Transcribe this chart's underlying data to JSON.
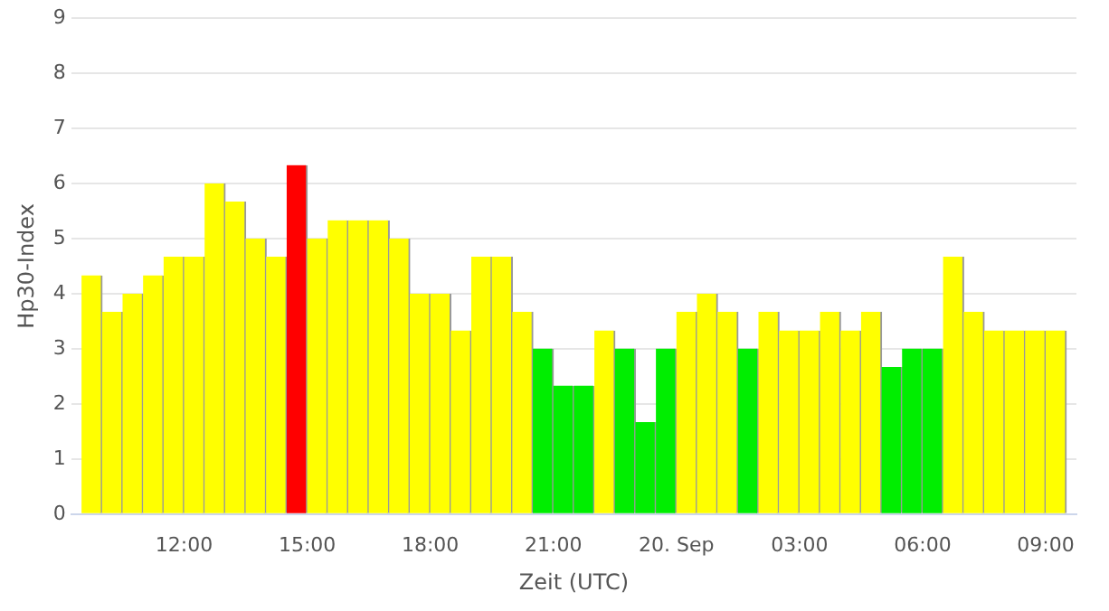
{
  "chart_data": {
    "type": "bar",
    "xlabel": "Zeit (UTC)",
    "ylabel": "Hp30-Index",
    "x": [
      "--09-19T09:45",
      "--09-19T10:15",
      "--09-19T10:45",
      "--09-19T11:15",
      "--09-19T11:45",
      "--09-19T12:15",
      "--09-19T12:45",
      "--09-19T13:15",
      "--09-19T13:45",
      "--09-19T14:15",
      "--09-19T14:45",
      "--09-19T15:15",
      "--09-19T15:45",
      "--09-19T16:15",
      "--09-19T16:45",
      "--09-19T17:15",
      "--09-19T17:45",
      "--09-19T18:15",
      "--09-19T18:45",
      "--09-19T19:15",
      "--09-19T19:45",
      "--09-19T20:15",
      "--09-19T20:45",
      "--09-19T21:15",
      "--09-19T21:45",
      "--09-19T22:15",
      "--09-19T22:45",
      "--09-19T23:15",
      "--09-19T23:45",
      "--09-20T00:15",
      "--09-20T00:45",
      "--09-20T01:15",
      "--09-20T01:45",
      "--09-20T02:15",
      "--09-20T02:45",
      "--09-20T03:15",
      "--09-20T03:45",
      "--09-20T04:15",
      "--09-20T04:45",
      "--09-20T05:15",
      "--09-20T05:45",
      "--09-20T06:15",
      "--09-20T06:45",
      "--09-20T07:15",
      "--09-20T07:45",
      "--09-20T08:15",
      "--09-20T08:45",
      "--09-20T09:15"
    ],
    "values": [
      4.33,
      3.67,
      4,
      4.33,
      4.67,
      4.67,
      6,
      5.67,
      5,
      4.67,
      6.33,
      5,
      5.33,
      5.33,
      5.33,
      5,
      4,
      4,
      3.33,
      4.67,
      4.67,
      3.67,
      3,
      2.33,
      2.33,
      3.33,
      3,
      1.67,
      3,
      3.67,
      4,
      3.67,
      3,
      3.67,
      3.33,
      3.33,
      3.67,
      3.33,
      3.67,
      2.67,
      3,
      3,
      4.67,
      3.67,
      3.33,
      3.33,
      3.33,
      3.33
    ],
    "colors": [
      "#ffff00",
      "#ffff00",
      "#ffff00",
      "#ffff00",
      "#ffff00",
      "#ffff00",
      "#ffff00",
      "#ffff00",
      "#ffff00",
      "#ffff00",
      "#ff0000",
      "#ffff00",
      "#ffff00",
      "#ffff00",
      "#ffff00",
      "#ffff00",
      "#ffff00",
      "#ffff00",
      "#ffff00",
      "#ffff00",
      "#ffff00",
      "#ffff00",
      "#00ee00",
      "#00ee00",
      "#00ee00",
      "#ffff00",
      "#00ee00",
      "#00ee00",
      "#00ee00",
      "#ffff00",
      "#ffff00",
      "#ffff00",
      "#00ee00",
      "#ffff00",
      "#ffff00",
      "#ffff00",
      "#ffff00",
      "#ffff00",
      "#ffff00",
      "#00ee00",
      "#00ee00",
      "#00ee00",
      "#ffff00",
      "#ffff00",
      "#ffff00",
      "#ffff00",
      "#ffff00",
      "#ffff00"
    ],
    "xlim": [
      "--09-19T09:15",
      "--09-20T09:45"
    ],
    "xticks": [
      {
        "value": "--09-19T12:00",
        "label": "12:00"
      },
      {
        "value": "--09-19T15:00",
        "label": "15:00"
      },
      {
        "value": "--09-19T18:00",
        "label": "18:00"
      },
      {
        "value": "--09-19T21:00",
        "label": "21:00"
      },
      {
        "value": "--09-20T00:00",
        "label": "20. Sep"
      },
      {
        "value": "--09-20T03:00",
        "label": "03:00"
      },
      {
        "value": "--09-20T06:00",
        "label": "06:00"
      },
      {
        "value": "--09-20T09:00",
        "label": "09:00"
      }
    ],
    "ylim": [
      0,
      9
    ],
    "yticks": [
      0,
      1,
      2,
      3,
      4,
      5,
      6,
      7,
      8,
      9
    ],
    "grid": "y",
    "legend": false
  }
}
